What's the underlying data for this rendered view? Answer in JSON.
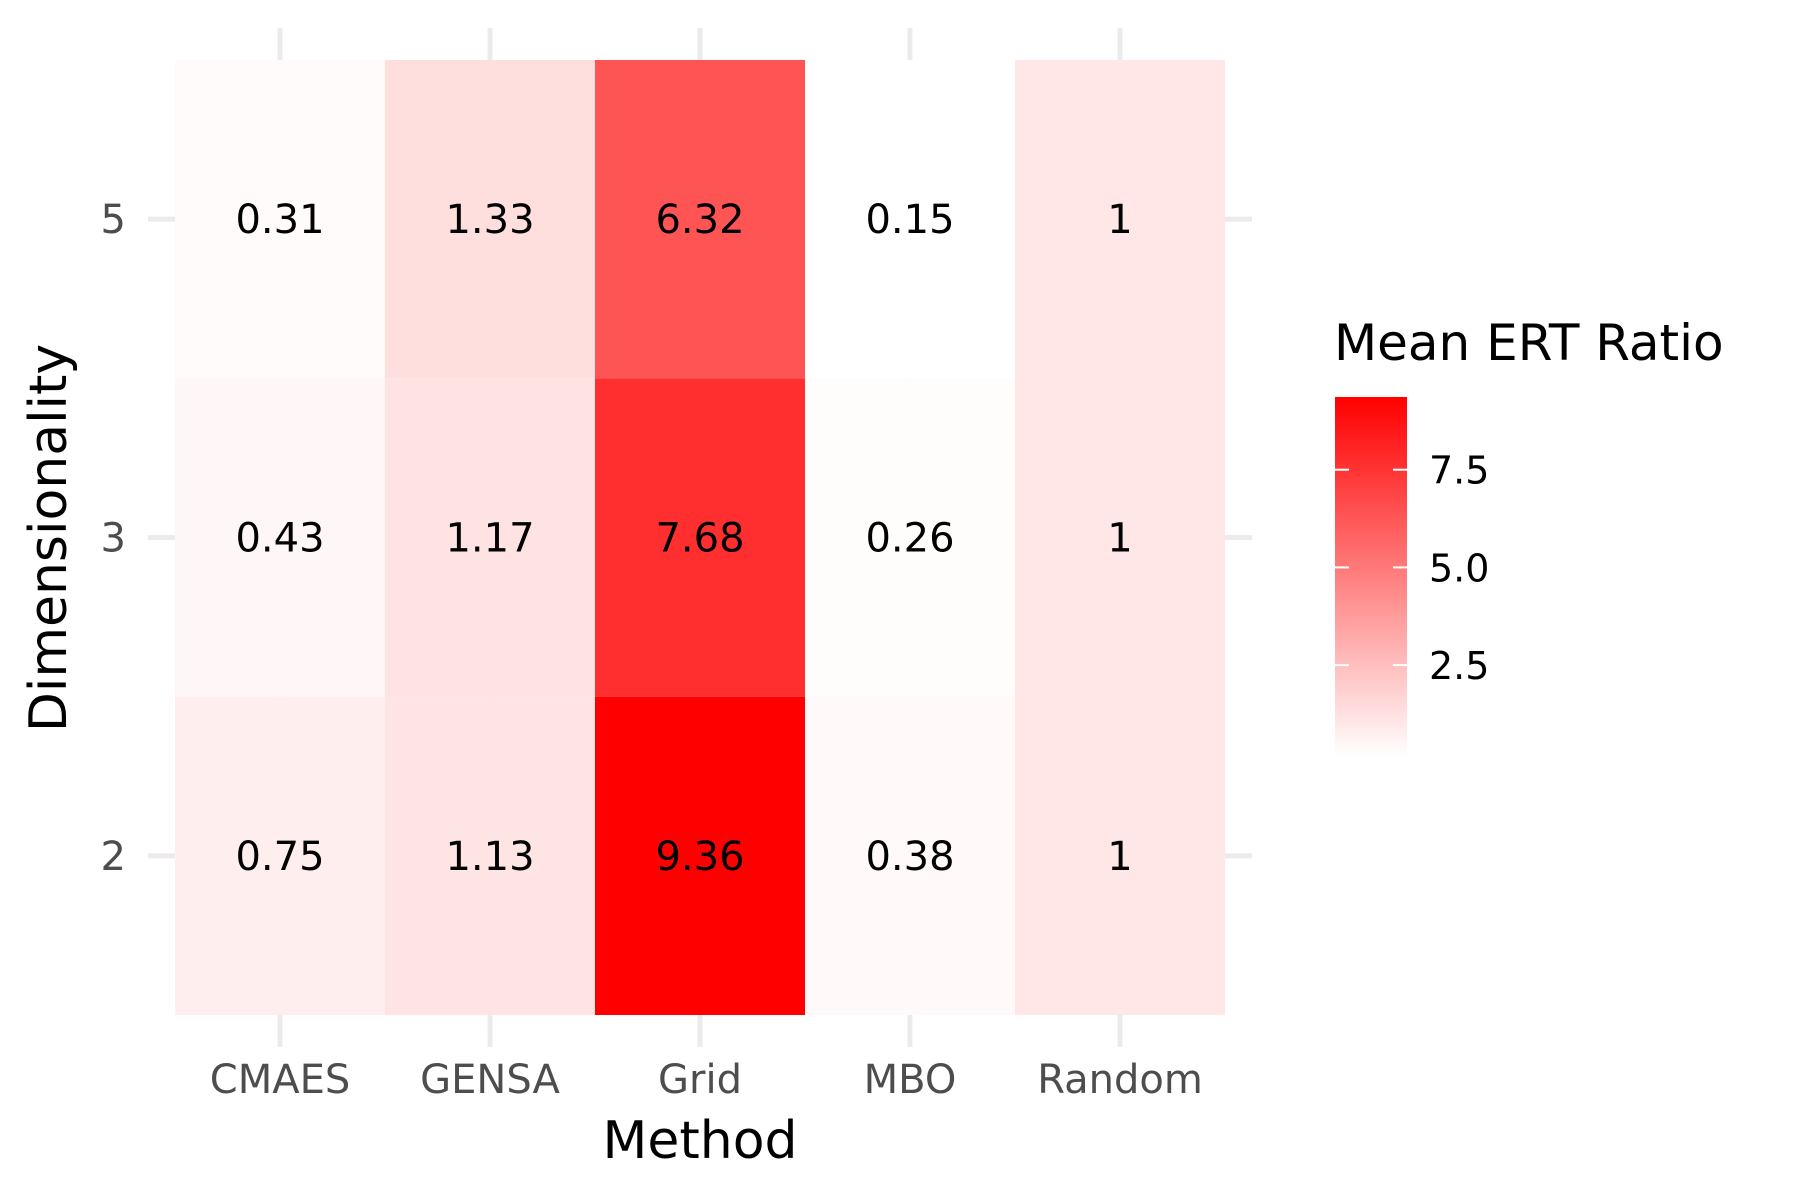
{
  "chart_data": {
    "type": "heatmap",
    "xlabel": "Method",
    "ylabel": "Dimensionality",
    "x_categories": [
      "CMAES",
      "GENSA",
      "Grid",
      "MBO",
      "Random"
    ],
    "y_categories": [
      "2",
      "3",
      "5"
    ],
    "cells": [
      {
        "x": "CMAES",
        "y": "5",
        "value": 0.31,
        "label": "0.31"
      },
      {
        "x": "GENSA",
        "y": "5",
        "value": 1.33,
        "label": "1.33"
      },
      {
        "x": "Grid",
        "y": "5",
        "value": 6.32,
        "label": "6.32"
      },
      {
        "x": "MBO",
        "y": "5",
        "value": 0.15,
        "label": "0.15"
      },
      {
        "x": "Random",
        "y": "5",
        "value": 1,
        "label": "1"
      },
      {
        "x": "CMAES",
        "y": "3",
        "value": 0.43,
        "label": "0.43"
      },
      {
        "x": "GENSA",
        "y": "3",
        "value": 1.17,
        "label": "1.17"
      },
      {
        "x": "Grid",
        "y": "3",
        "value": 7.68,
        "label": "7.68"
      },
      {
        "x": "MBO",
        "y": "3",
        "value": 0.26,
        "label": "0.26"
      },
      {
        "x": "Random",
        "y": "3",
        "value": 1,
        "label": "1"
      },
      {
        "x": "CMAES",
        "y": "2",
        "value": 0.75,
        "label": "0.75"
      },
      {
        "x": "GENSA",
        "y": "2",
        "value": 1.13,
        "label": "1.13"
      },
      {
        "x": "Grid",
        "y": "2",
        "value": 9.36,
        "label": "9.36"
      },
      {
        "x": "MBO",
        "y": "2",
        "value": 0.38,
        "label": "0.38"
      },
      {
        "x": "Random",
        "y": "2",
        "value": 1,
        "label": "1"
      }
    ],
    "legend": {
      "title": "Mean ERT Ratio",
      "placement": "right",
      "low_color": "#ffffff",
      "high_color": "#ff0000",
      "min": 0.15,
      "max": 9.36,
      "ticks": [
        {
          "value": 2.5,
          "label": "2.5"
        },
        {
          "value": 5.0,
          "label": "5.0"
        },
        {
          "value": 7.5,
          "label": "7.5"
        }
      ]
    },
    "grid": true,
    "gridline_color": "#ebebeb"
  }
}
